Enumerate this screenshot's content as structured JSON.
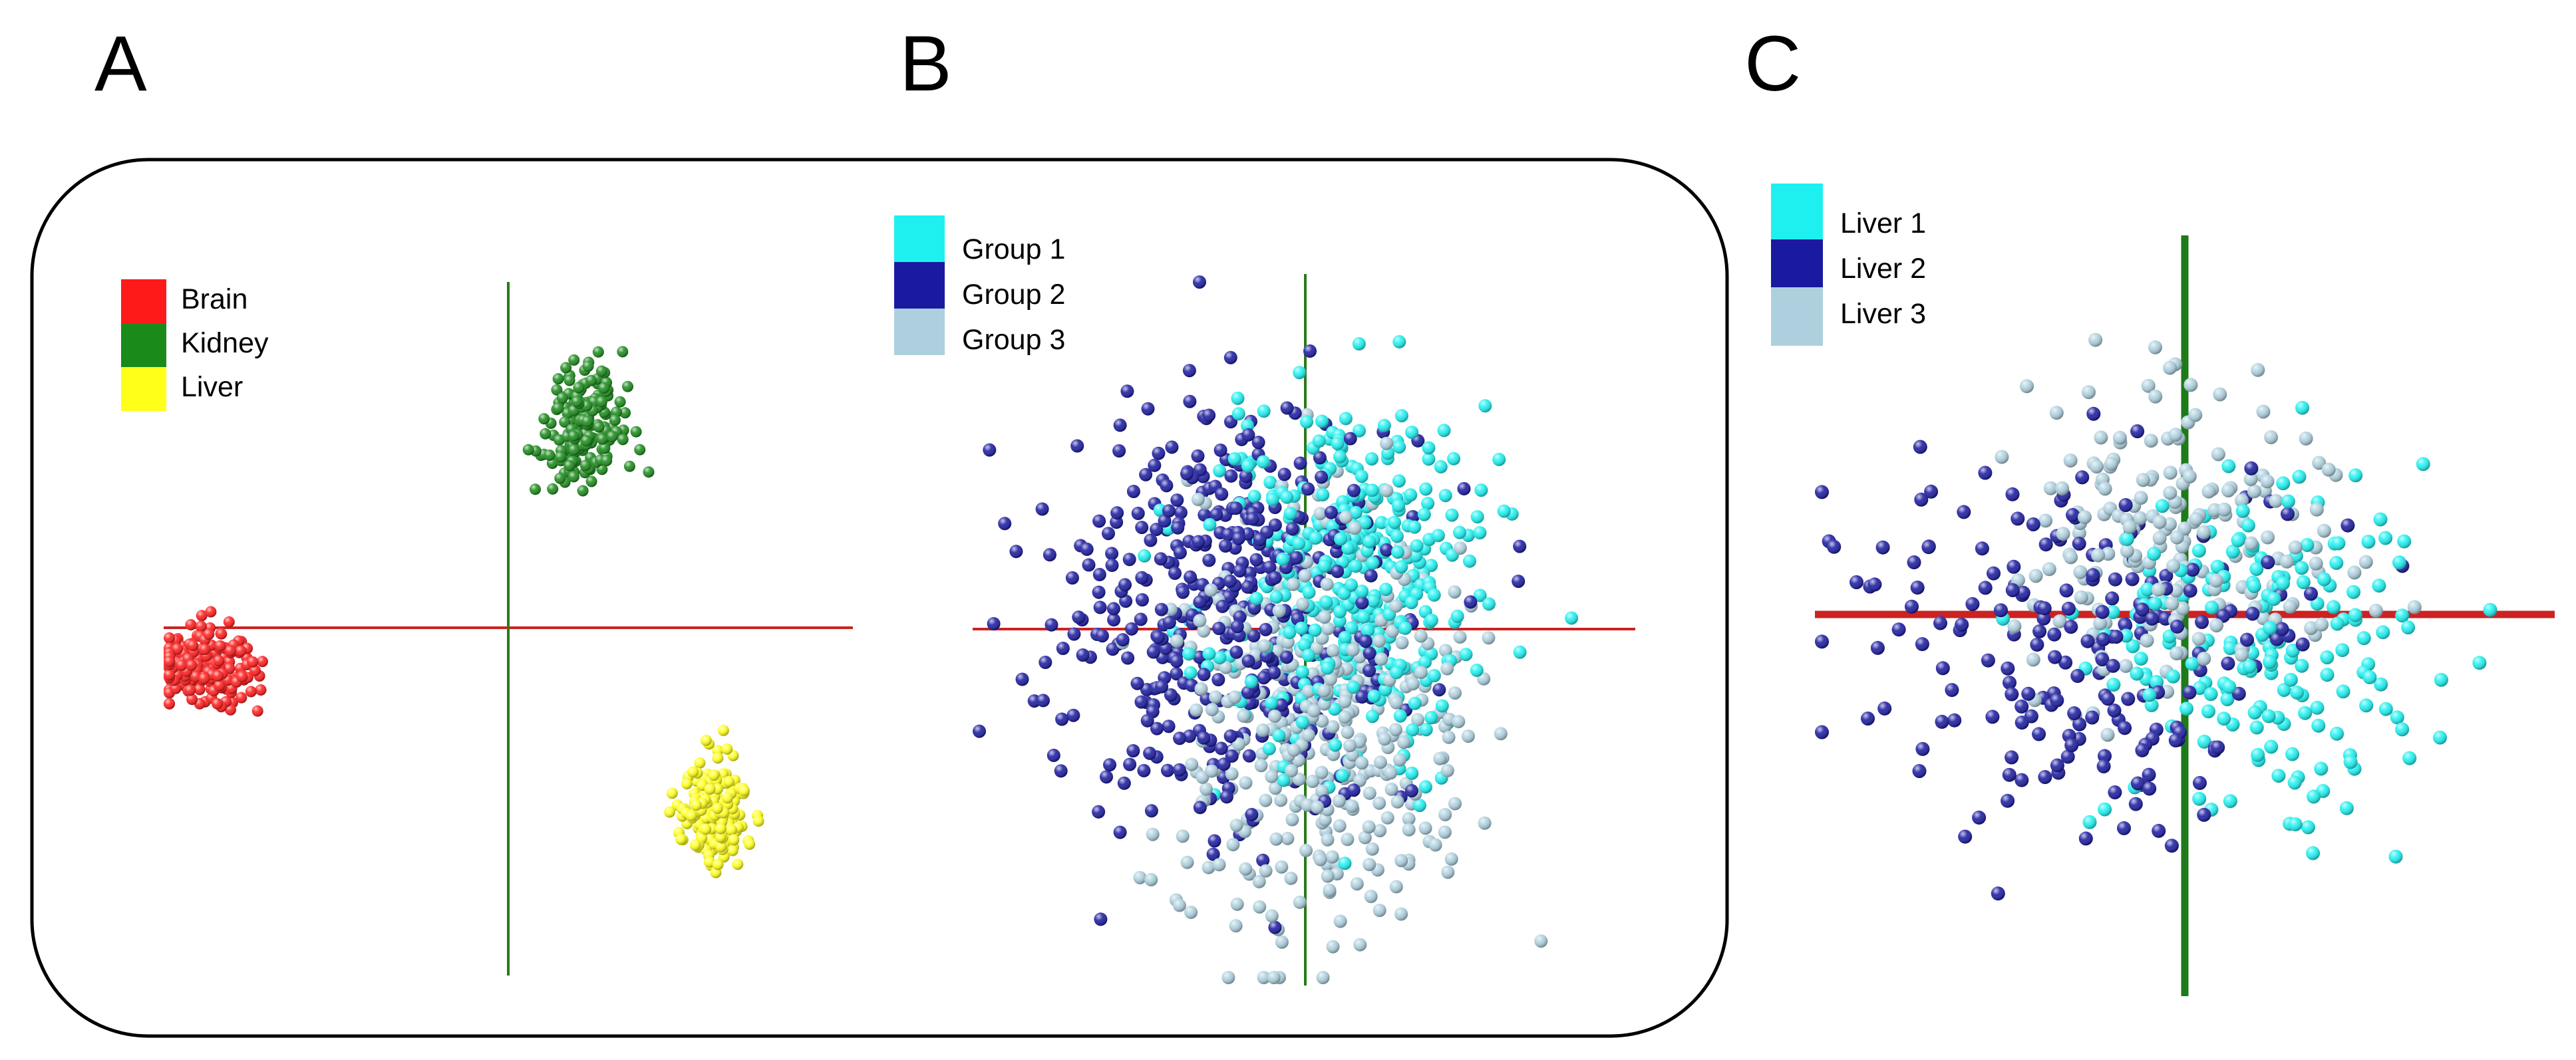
{
  "figure": {
    "type": "scatter-3d-projection",
    "panel_count": 3
  },
  "chart_data": [
    {
      "panel": "A",
      "type": "scatter",
      "title": "",
      "xlabel": "",
      "ylabel": "",
      "xlim": [
        -1.0,
        1.0
      ],
      "ylim": [
        -1.0,
        1.0
      ],
      "grid": false,
      "legend": {
        "position": "top-left"
      },
      "axes": [
        {
          "name": "horizontal-axis",
          "color": "#cc2222"
        },
        {
          "name": "vertical-axis",
          "color": "#2a7a1a"
        }
      ],
      "series": [
        {
          "name": "Brain",
          "color": "#ff1a1a",
          "center": [
            -0.89,
            -0.11
          ],
          "spread": [
            0.07,
            0.05
          ],
          "count": 220,
          "seed": 11
        },
        {
          "name": "Kidney",
          "color": "#1a8a1a",
          "center": [
            0.22,
            0.58
          ],
          "spread": [
            0.055,
            0.08
          ],
          "count": 200,
          "seed": 23
        },
        {
          "name": "Liver",
          "color": "#ffff1a",
          "center": [
            0.6,
            -0.53
          ],
          "spread": [
            0.045,
            0.08
          ],
          "count": 200,
          "seed": 37
        }
      ]
    },
    {
      "panel": "B",
      "type": "scatter",
      "title": "",
      "xlabel": "",
      "ylabel": "",
      "xlim": [
        -1.0,
        1.0
      ],
      "ylim": [
        -1.0,
        1.0
      ],
      "grid": false,
      "legend": {
        "position": "top-left"
      },
      "axes": [
        {
          "name": "horizontal-axis",
          "color": "#cc2222"
        },
        {
          "name": "vertical-axis",
          "color": "#2a7a1a"
        }
      ],
      "series": [
        {
          "name": "Group 1",
          "color": "#1ef0f0",
          "center": [
            0.16,
            0.14
          ],
          "spread": [
            0.22,
            0.26
          ],
          "count": 380,
          "seed": 101
        },
        {
          "name": "Group 2",
          "color": "#1a1aa0",
          "center": [
            -0.22,
            0.05
          ],
          "spread": [
            0.26,
            0.3
          ],
          "count": 420,
          "seed": 202
        },
        {
          "name": "Group 3",
          "color": "#aed0de",
          "center": [
            0.05,
            -0.3
          ],
          "spread": [
            0.22,
            0.3
          ],
          "count": 380,
          "seed": 303
        }
      ]
    },
    {
      "panel": "C",
      "type": "scatter",
      "title": "",
      "xlabel": "",
      "ylabel": "",
      "xlim": [
        -1.0,
        1.0
      ],
      "ylim": [
        -1.0,
        1.0
      ],
      "grid": false,
      "legend": {
        "position": "top-left"
      },
      "axes": [
        {
          "name": "horizontal-axis",
          "color": "#cc2222"
        },
        {
          "name": "vertical-axis",
          "color": "#1e7a1a"
        }
      ],
      "series": [
        {
          "name": "Liver 1",
          "color": "#1ef0f0",
          "center": [
            0.22,
            -0.08
          ],
          "spread": [
            0.24,
            0.24
          ],
          "count": 190,
          "seed": 404
        },
        {
          "name": "Liver 2",
          "color": "#1a1aa0",
          "center": [
            -0.3,
            -0.1
          ],
          "spread": [
            0.3,
            0.26
          ],
          "count": 200,
          "seed": 505
        },
        {
          "name": "Liver 3",
          "color": "#aed0de",
          "center": [
            -0.02,
            0.22
          ],
          "spread": [
            0.2,
            0.24
          ],
          "count": 190,
          "seed": 606
        }
      ]
    }
  ]
}
